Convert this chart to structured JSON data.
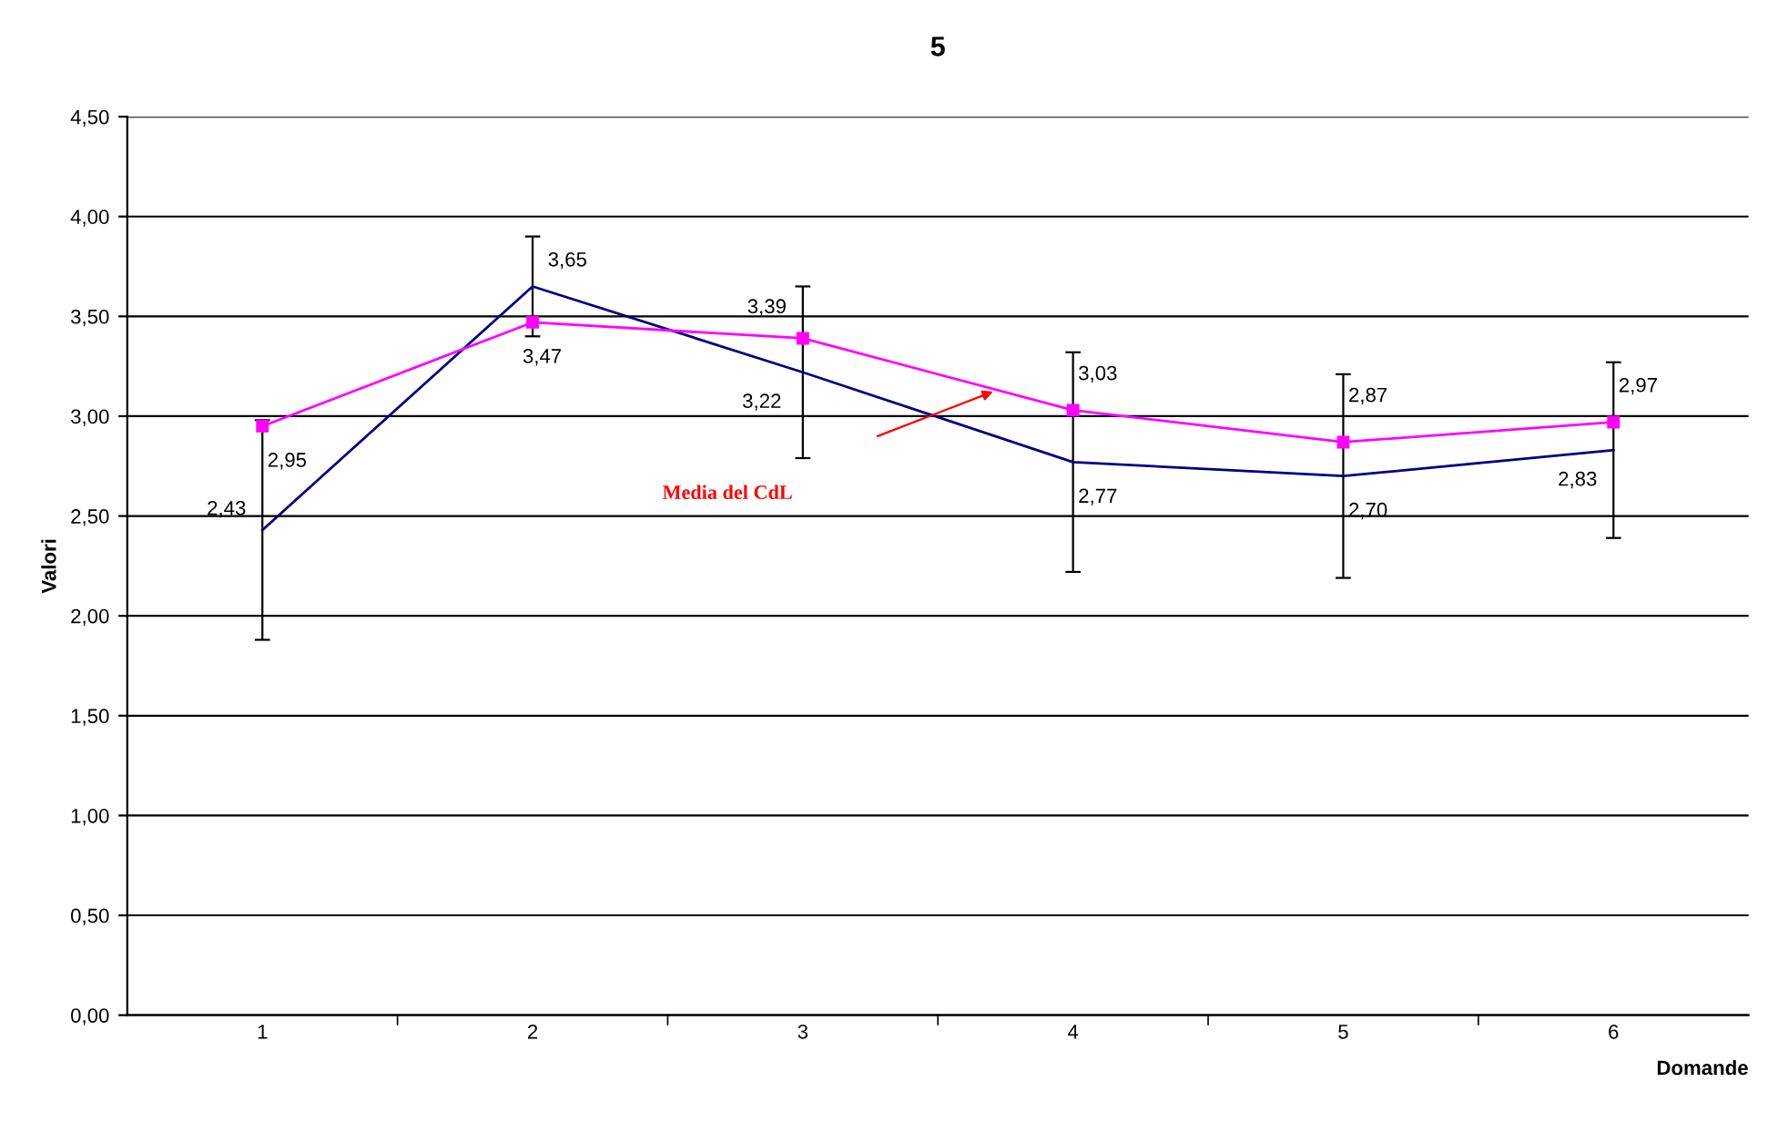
{
  "chart_data": {
    "type": "line",
    "title": "5",
    "xlabel": "Domande",
    "ylabel": "Valori",
    "categories": [
      "1",
      "2",
      "3",
      "4",
      "5",
      "6"
    ],
    "series": [
      {
        "color": "#000080",
        "values": [
          2.43,
          3.65,
          3.22,
          2.77,
          2.7,
          2.83
        ],
        "errors": [
          0.55,
          0.25,
          0.43,
          0.55,
          0.51,
          0.44
        ],
        "value_labels": [
          "2,43",
          "3,65",
          "3,22",
          "2,77",
          "2,70",
          "2,83"
        ],
        "marker": "none"
      },
      {
        "color": "#ff00ff",
        "values": [
          2.95,
          3.47,
          3.39,
          3.03,
          2.87,
          2.97
        ],
        "value_labels": [
          "2,95",
          "3,47",
          "3,39",
          "3,03",
          "2,87",
          "2,97"
        ],
        "marker": "square"
      }
    ],
    "ylim": [
      0,
      4.5
    ],
    "yticks": [
      {
        "value": 0,
        "label": "0,00"
      },
      {
        "value": 0.5,
        "label": "0,50"
      },
      {
        "value": 1,
        "label": "1,00"
      },
      {
        "value": 1.5,
        "label": "1,50"
      },
      {
        "value": 2,
        "label": "2,00"
      },
      {
        "value": 2.5,
        "label": "2,50"
      },
      {
        "value": 3,
        "label": "3,00"
      },
      {
        "value": 3.5,
        "label": "3,50"
      },
      {
        "value": 4,
        "label": "4,00"
      },
      {
        "value": 4.5,
        "label": "4,50"
      }
    ],
    "grid": "y",
    "legend": false,
    "line_style": "solid",
    "annotations": [
      "Media del CdL"
    ]
  }
}
